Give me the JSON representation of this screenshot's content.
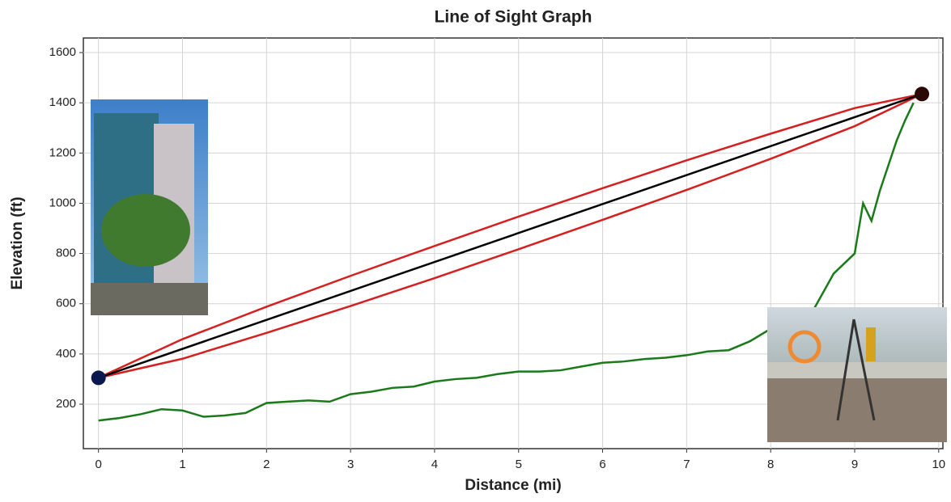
{
  "chart_data": {
    "type": "line",
    "title": "Line of Sight Graph",
    "x_label": "Distance (mi)",
    "y_label": "Elevation (ft)",
    "xlim": [
      -0.18,
      10.05
    ],
    "ylim": [
      23,
      1658
    ],
    "xticks": [
      0,
      1,
      2,
      3,
      4,
      5,
      6,
      7,
      8,
      9,
      10
    ],
    "yticks": [
      200,
      400,
      600,
      800,
      1000,
      1200,
      1400,
      1600
    ],
    "grid": true,
    "series": [
      {
        "color": "#1a7a1a",
        "x": [
          0,
          0.25,
          0.5,
          0.75,
          1,
          1.25,
          1.5,
          1.75,
          2,
          2.25,
          2.5,
          2.75,
          3,
          3.25,
          3.5,
          3.75,
          4,
          4.25,
          4.5,
          4.75,
          5,
          5.25,
          5.5,
          5.75,
          6,
          6.25,
          6.5,
          6.75,
          7,
          7.25,
          7.5,
          7.75,
          8,
          8.25,
          8.5,
          8.75,
          9,
          9.1,
          9.2,
          9.3,
          9.5,
          9.6,
          9.7
        ],
        "values": [
          135,
          145,
          160,
          180,
          175,
          150,
          155,
          165,
          205,
          210,
          215,
          210,
          240,
          250,
          265,
          270,
          290,
          300,
          305,
          320,
          330,
          330,
          335,
          350,
          365,
          370,
          380,
          385,
          395,
          410,
          415,
          450,
          500,
          530,
          570,
          720,
          800,
          1000,
          930,
          1050,
          1250,
          1330,
          1400
        ]
      },
      {
        "color": "#d42020",
        "x": [
          0,
          1,
          2,
          3,
          4,
          5,
          6,
          7,
          8,
          9,
          9.8
        ],
        "values": [
          305,
          459,
          588,
          711,
          830,
          947,
          1060,
          1171,
          1277,
          1379,
          1435
        ]
      },
      {
        "color": "#d42020",
        "x": [
          0,
          1,
          2,
          3,
          4,
          5,
          6,
          7,
          8,
          9,
          9.8
        ],
        "values": [
          305,
          381,
          484,
          591,
          702,
          817,
          934,
          1053,
          1177,
          1307,
          1435
        ]
      },
      {
        "color": "#000000",
        "x": [
          0,
          9.8
        ],
        "values": [
          305,
          1435
        ]
      }
    ],
    "endpoints": {
      "x": [
        0,
        9.8
      ],
      "values": [
        305,
        1435
      ],
      "colors": [
        "#0a1850",
        "#2a0808"
      ]
    }
  }
}
